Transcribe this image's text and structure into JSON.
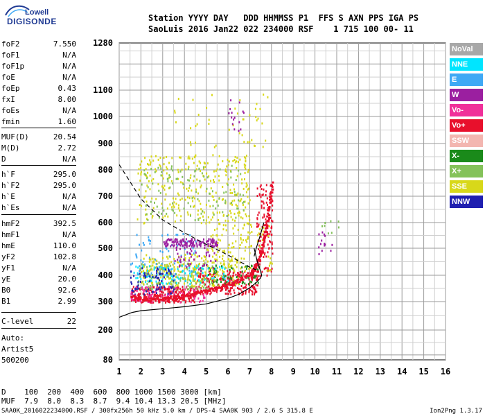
{
  "logo": {
    "line1": "Lowell",
    "line2": "DIGISONDE"
  },
  "header": {
    "line1": "Station YYYY DAY   DDD HHMMSS P1  FFS S AXN PPS IGA PS",
    "line2": "SaoLuis 2016 Jan22 022 234000 RSF    1 715 100 00- 11"
  },
  "params": [
    {
      "key": "foF2",
      "value": "7.550"
    },
    {
      "key": "foF1",
      "value": "N/A"
    },
    {
      "key": "foF1p",
      "value": "N/A"
    },
    {
      "key": "foE",
      "value": "N/A"
    },
    {
      "key": "foEp",
      "value": "0.43"
    },
    {
      "key": "fxI",
      "value": "8.00"
    },
    {
      "key": "foEs",
      "value": "N/A"
    },
    {
      "key": "fmin",
      "value": "1.60"
    },
    {
      "key": "MUF(D)",
      "value": "20.54"
    },
    {
      "key": "M(D)",
      "value": "2.72"
    },
    {
      "key": "D",
      "value": "N/A"
    },
    {
      "key": "h`F",
      "value": "295.0"
    },
    {
      "key": "h`F2",
      "value": "295.0"
    },
    {
      "key": "h`E",
      "value": "N/A"
    },
    {
      "key": "h`Es",
      "value": "N/A"
    },
    {
      "key": "hmF2",
      "value": "392.5"
    },
    {
      "key": "hmF1",
      "value": "N/A"
    },
    {
      "key": "hmE",
      "value": "110.0"
    },
    {
      "key": "yF2",
      "value": "102.8"
    },
    {
      "key": "yF1",
      "value": "N/A"
    },
    {
      "key": "yE",
      "value": "20.0"
    },
    {
      "key": "B0",
      "value": "92.6"
    },
    {
      "key": "B1",
      "value": "2.99"
    },
    {
      "key": "C-level",
      "value": "22"
    }
  ],
  "notes": {
    "auto": "Auto:",
    "artist": "Artist5",
    "code": "500200"
  },
  "legend": [
    {
      "label": "NoVal",
      "color": "#a8a8a8"
    },
    {
      "label": "NNE",
      "color": "#00e5ff"
    },
    {
      "label": "E",
      "color": "#3fa9f5"
    },
    {
      "label": "W",
      "color": "#9b1fa0"
    },
    {
      "label": "Vo-",
      "color": "#f0309a"
    },
    {
      "label": "Vo+",
      "color": "#e8102c"
    },
    {
      "label": "SSW",
      "color": "#f3b6b0"
    },
    {
      "label": "X-",
      "color": "#1a8a1a"
    },
    {
      "label": "X+",
      "color": "#84c25a"
    },
    {
      "label": "SSE",
      "color": "#d8d81a"
    },
    {
      "label": "NNW",
      "color": "#1f1fb0"
    }
  ],
  "muf_table": {
    "d_row": "D    100  200  400  600  800 1000 1500 3000 [km]",
    "muf_row": "MUF  7.9  8.0  8.3  8.7  9.4 10.4 13.3 20.5 [MHz]"
  },
  "footer": {
    "text": "SAA0K_2016022234000.RSF / 300fx256h 50 kHz 5.0 km / DPS-4 SAA0K 903 / 2.6 S 315.8 E",
    "version": "Ion2Png 1.3.17"
  },
  "chart_data": {
    "type": "scatter",
    "xlabel": "",
    "ylabel": "",
    "x_ticks": [
      1,
      2,
      3,
      4,
      5,
      6,
      7,
      8,
      9,
      10,
      11,
      12,
      13,
      14,
      15,
      16
    ],
    "y_ticks": [
      80,
      200,
      300,
      400,
      500,
      600,
      700,
      800,
      900,
      1000,
      1100,
      1280
    ],
    "xlim": [
      1,
      16
    ],
    "ylim": [
      80,
      1280
    ],
    "grid": true,
    "ordinary_trace": {
      "name": "Vo+",
      "x": [
        1.6,
        2.0,
        2.5,
        3.0,
        3.5,
        4.0,
        4.5,
        5.0,
        5.5,
        6.0,
        6.5,
        7.0,
        7.2,
        7.4,
        7.55,
        7.7,
        7.8,
        7.9,
        8.0
      ],
      "y": [
        320,
        315,
        312,
        312,
        318,
        325,
        335,
        345,
        355,
        368,
        385,
        410,
        430,
        460,
        500,
        560,
        620,
        690,
        760
      ]
    },
    "profile_curve": {
      "x": [
        1.0,
        1.6,
        2.0,
        3.0,
        4.0,
        5.0,
        6.0,
        6.5,
        7.0,
        7.3,
        7.5,
        7.55,
        7.5,
        7.35,
        7.2
      ],
      "y": [
        245,
        262,
        268,
        275,
        282,
        292,
        312,
        328,
        352,
        372,
        390,
        400,
        415,
        450,
        500
      ]
    },
    "upper_curve": {
      "x": [
        7.2,
        7.3,
        7.45,
        7.55,
        7.65
      ],
      "y": [
        470,
        500,
        540,
        570,
        600
      ]
    },
    "dashed_curve": {
      "x": [
        1.0,
        2.0,
        3.0,
        4.0,
        5.0,
        6.0,
        7.0,
        7.3
      ],
      "y": [
        820,
        690,
        610,
        560,
        515,
        475,
        430,
        420
      ]
    },
    "clusters": [
      {
        "series": "Vo+",
        "x": [
          1.5,
          4.5
        ],
        "y": [
          300,
          360
        ],
        "n": 260
      },
      {
        "series": "Vo+",
        "x": [
          4.5,
          7.4
        ],
        "y": [
          330,
          420
        ],
        "n": 220
      },
      {
        "series": "Vo+",
        "x": [
          7.3,
          8.05
        ],
        "y": [
          400,
          760
        ],
        "n": 110
      },
      {
        "series": "X+",
        "x": [
          1.8,
          5.5
        ],
        "y": [
          350,
          450
        ],
        "n": 180
      },
      {
        "series": "X-",
        "x": [
          5.0,
          7.5
        ],
        "y": [
          370,
          440
        ],
        "n": 70
      },
      {
        "series": "SSE",
        "x": [
          2.0,
          6.5
        ],
        "y": [
          360,
          480
        ],
        "n": 220
      },
      {
        "series": "SSE",
        "x": [
          1.8,
          7.0
        ],
        "y": [
          600,
          860
        ],
        "n": 300
      },
      {
        "series": "SSE",
        "x": [
          5.0,
          8.0
        ],
        "y": [
          420,
          600
        ],
        "n": 110
      },
      {
        "series": "X+",
        "x": [
          2.0,
          6.8
        ],
        "y": [
          610,
          820
        ],
        "n": 110
      },
      {
        "series": "NNE",
        "x": [
          1.5,
          6.0
        ],
        "y": [
          370,
          440
        ],
        "n": 90
      },
      {
        "series": "E",
        "x": [
          1.5,
          4.5
        ],
        "y": [
          400,
          560
        ],
        "n": 70
      },
      {
        "series": "W",
        "x": [
          3.0,
          5.5
        ],
        "y": [
          510,
          540
        ],
        "n": 130
      },
      {
        "series": "W",
        "x": [
          3.5,
          5.5
        ],
        "y": [
          420,
          520
        ],
        "n": 50
      },
      {
        "series": "NNW",
        "x": [
          1.5,
          3.5
        ],
        "y": [
          330,
          430
        ],
        "n": 80
      },
      {
        "series": "Vo-",
        "x": [
          1.5,
          5.0
        ],
        "y": [
          300,
          360
        ],
        "n": 80
      },
      {
        "series": "SSE",
        "x": [
          3.5,
          7.8
        ],
        "y": [
          880,
          1090
        ],
        "n": 45
      },
      {
        "series": "W",
        "x": [
          6.0,
          6.7
        ],
        "y": [
          950,
          1080
        ],
        "n": 15
      },
      {
        "series": "W",
        "x": [
          10.0,
          10.8
        ],
        "y": [
          480,
          600
        ],
        "n": 14
      },
      {
        "series": "X+",
        "x": [
          10.3,
          11.2
        ],
        "y": [
          560,
          620
        ],
        "n": 8
      }
    ]
  }
}
